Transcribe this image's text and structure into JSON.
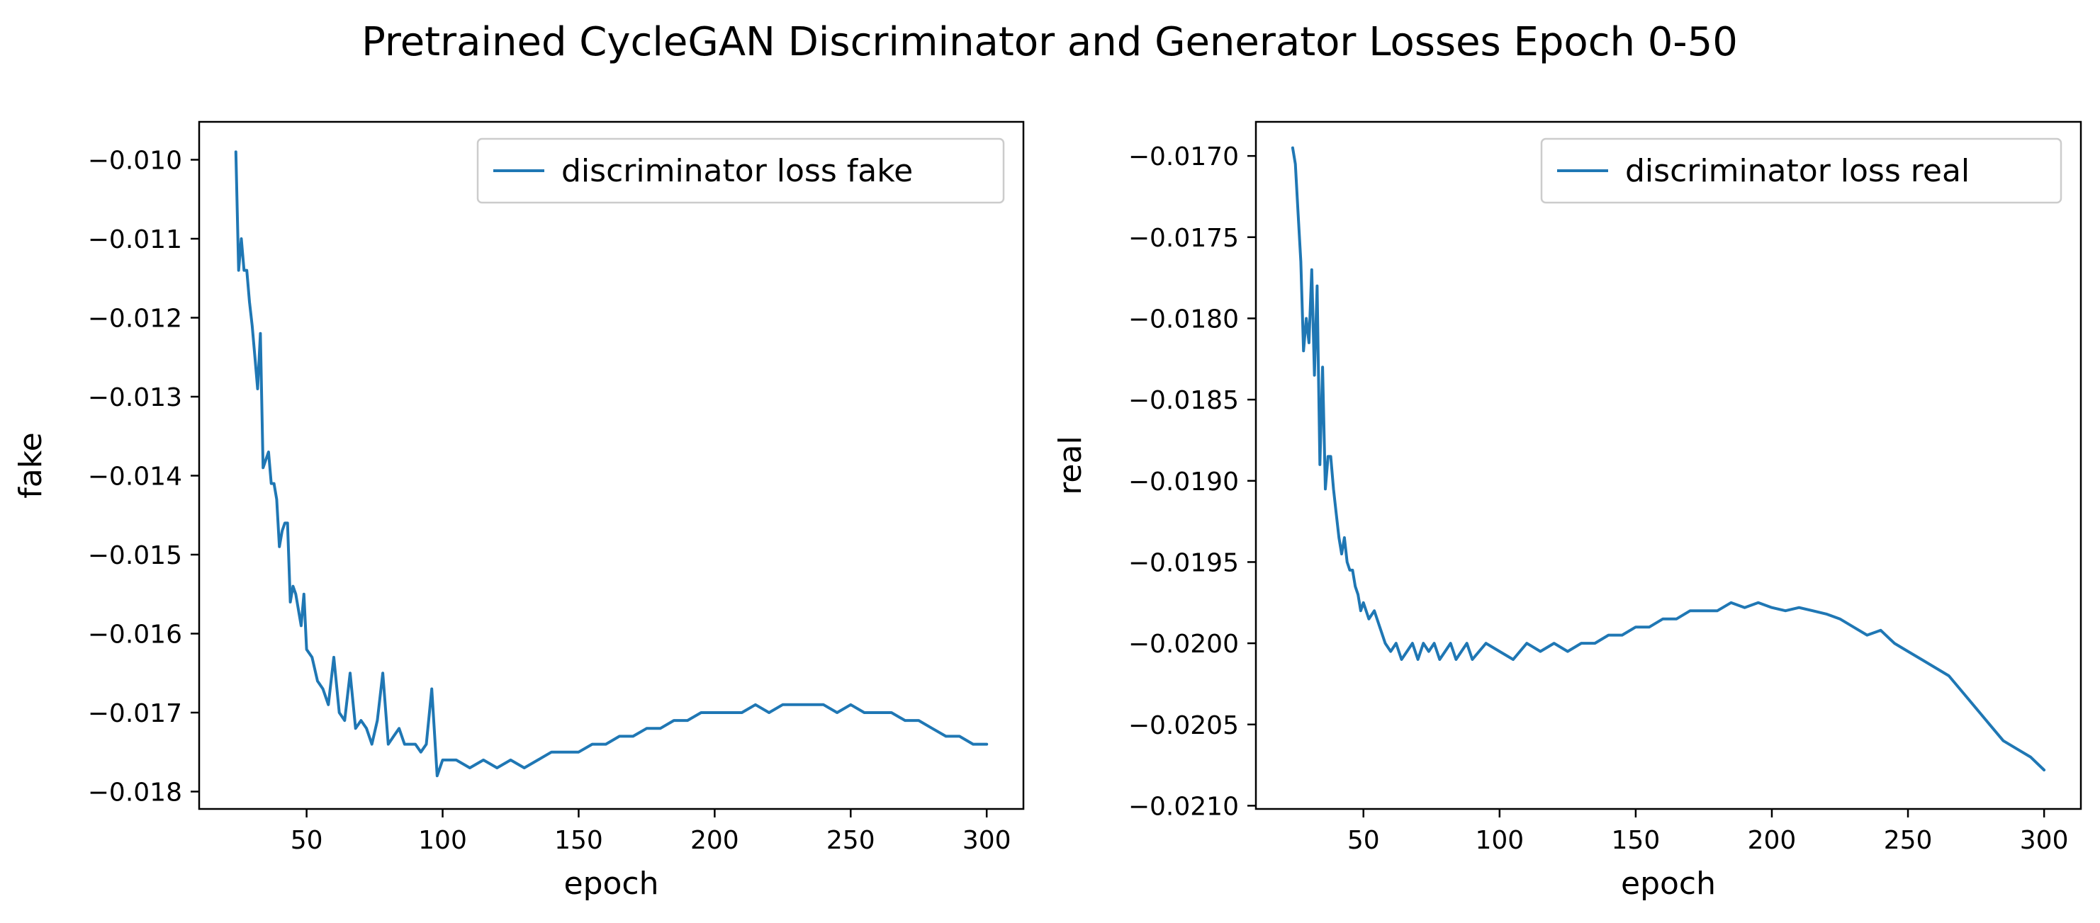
{
  "figure": {
    "title": "Pretrained CycleGAN Discriminator and Generator Losses Epoch 0-50"
  },
  "colors": {
    "series": "#1f77b4",
    "axes": "#000000",
    "legend_border": "#cccccc"
  },
  "chart_data": [
    {
      "type": "line",
      "title": "",
      "xlabel": "epoch",
      "ylabel": "fake",
      "xlim": [
        10.5,
        313.5
      ],
      "ylim": [
        -0.01822,
        -0.00952
      ],
      "xticks": [
        50,
        100,
        150,
        200,
        250,
        300
      ],
      "xtick_labels": [
        "50",
        "100",
        "150",
        "200",
        "250",
        "300"
      ],
      "yticks": [
        -0.01,
        -0.011,
        -0.012,
        -0.013,
        -0.014,
        -0.015,
        -0.016,
        -0.017,
        -0.018
      ],
      "ytick_labels": [
        "−0.010",
        "−0.011",
        "−0.012",
        "−0.013",
        "−0.014",
        "−0.015",
        "−0.016",
        "−0.017",
        "−0.018"
      ],
      "grid": false,
      "legend_position": "upper right",
      "series": [
        {
          "name": "discriminator loss fake",
          "color": "#1f77b4",
          "x": [
            24,
            25,
            26,
            27,
            28,
            29,
            30,
            31,
            32,
            33,
            34,
            35,
            36,
            37,
            38,
            39,
            40,
            41,
            42,
            43,
            44,
            45,
            46,
            47,
            48,
            49,
            50,
            52,
            54,
            56,
            58,
            60,
            62,
            64,
            66,
            68,
            70,
            72,
            74,
            76,
            78,
            80,
            82,
            84,
            86,
            88,
            90,
            92,
            94,
            96,
            98,
            100,
            105,
            110,
            115,
            120,
            125,
            130,
            135,
            140,
            145,
            150,
            155,
            160,
            165,
            170,
            175,
            180,
            185,
            190,
            195,
            200,
            205,
            210,
            215,
            220,
            225,
            230,
            235,
            240,
            245,
            250,
            255,
            260,
            265,
            270,
            275,
            280,
            285,
            290,
            295,
            300
          ],
          "y": [
            -0.0099,
            -0.0114,
            -0.011,
            -0.0114,
            -0.0114,
            -0.0118,
            -0.0121,
            -0.0125,
            -0.0129,
            -0.0122,
            -0.0139,
            -0.0138,
            -0.0137,
            -0.0141,
            -0.0141,
            -0.0143,
            -0.0149,
            -0.0147,
            -0.0146,
            -0.0146,
            -0.0156,
            -0.0154,
            -0.0155,
            -0.0157,
            -0.0159,
            -0.0155,
            -0.0162,
            -0.0163,
            -0.0166,
            -0.0167,
            -0.0169,
            -0.0163,
            -0.017,
            -0.0171,
            -0.0165,
            -0.0172,
            -0.0171,
            -0.0172,
            -0.0174,
            -0.0171,
            -0.0165,
            -0.0174,
            -0.0173,
            -0.0172,
            -0.0174,
            -0.0174,
            -0.0174,
            -0.0175,
            -0.0174,
            -0.0167,
            -0.0178,
            -0.0176,
            -0.0176,
            -0.0177,
            -0.0176,
            -0.0177,
            -0.0176,
            -0.0177,
            -0.0176,
            -0.0175,
            -0.0175,
            -0.0175,
            -0.0174,
            -0.0174,
            -0.0173,
            -0.0173,
            -0.0172,
            -0.0172,
            -0.0171,
            -0.0171,
            -0.017,
            -0.017,
            -0.017,
            -0.017,
            -0.0169,
            -0.017,
            -0.0169,
            -0.0169,
            -0.0169,
            -0.0169,
            -0.017,
            -0.0169,
            -0.017,
            -0.017,
            -0.017,
            -0.0171,
            -0.0171,
            -0.0172,
            -0.0173,
            -0.0173,
            -0.0174,
            -0.0174
          ]
        }
      ]
    },
    {
      "type": "line",
      "title": "",
      "xlabel": "epoch",
      "ylabel": "real",
      "xlim": [
        10.5,
        313.5
      ],
      "ylim": [
        -0.02102,
        -0.01679
      ],
      "xticks": [
        50,
        100,
        150,
        200,
        250,
        300
      ],
      "xtick_labels": [
        "50",
        "100",
        "150",
        "200",
        "250",
        "300"
      ],
      "yticks": [
        -0.017,
        -0.0175,
        -0.018,
        -0.0185,
        -0.019,
        -0.0195,
        -0.02,
        -0.0205,
        -0.021
      ],
      "ytick_labels": [
        "−0.0170",
        "−0.0175",
        "−0.0180",
        "−0.0185",
        "−0.0190",
        "−0.0195",
        "−0.0200",
        "−0.0205",
        "−0.0210"
      ],
      "grid": false,
      "legend_position": "upper right",
      "series": [
        {
          "name": "discriminator loss real",
          "color": "#1f77b4",
          "x": [
            24,
            25,
            26,
            27,
            28,
            29,
            30,
            31,
            32,
            33,
            34,
            35,
            36,
            37,
            38,
            39,
            40,
            41,
            42,
            43,
            44,
            45,
            46,
            47,
            48,
            49,
            50,
            52,
            54,
            56,
            58,
            60,
            62,
            64,
            66,
            68,
            70,
            72,
            74,
            76,
            78,
            80,
            82,
            84,
            86,
            88,
            90,
            95,
            100,
            105,
            110,
            115,
            120,
            125,
            130,
            135,
            140,
            145,
            150,
            155,
            160,
            165,
            170,
            175,
            180,
            185,
            190,
            195,
            200,
            205,
            210,
            215,
            220,
            225,
            230,
            235,
            240,
            245,
            250,
            255,
            260,
            265,
            270,
            275,
            280,
            285,
            290,
            295,
            300
          ],
          "y": [
            -0.01695,
            -0.01705,
            -0.01735,
            -0.01765,
            -0.0182,
            -0.018,
            -0.01815,
            -0.0177,
            -0.01835,
            -0.0178,
            -0.0189,
            -0.0183,
            -0.01905,
            -0.01885,
            -0.01885,
            -0.01905,
            -0.0192,
            -0.01935,
            -0.01945,
            -0.01935,
            -0.0195,
            -0.01955,
            -0.01955,
            -0.01965,
            -0.0197,
            -0.0198,
            -0.01975,
            -0.01985,
            -0.0198,
            -0.0199,
            -0.02,
            -0.02005,
            -0.02,
            -0.0201,
            -0.02005,
            -0.02,
            -0.0201,
            -0.02,
            -0.02005,
            -0.02,
            -0.0201,
            -0.02005,
            -0.02,
            -0.0201,
            -0.02005,
            -0.02,
            -0.0201,
            -0.02,
            -0.02005,
            -0.0201,
            -0.02,
            -0.02005,
            -0.02,
            -0.02005,
            -0.02,
            -0.02,
            -0.01995,
            -0.01995,
            -0.0199,
            -0.0199,
            -0.01985,
            -0.01985,
            -0.0198,
            -0.0198,
            -0.0198,
            -0.01975,
            -0.01978,
            -0.01975,
            -0.01978,
            -0.0198,
            -0.01978,
            -0.0198,
            -0.01982,
            -0.01985,
            -0.0199,
            -0.01995,
            -0.01992,
            -0.02,
            -0.02005,
            -0.0201,
            -0.02015,
            -0.0202,
            -0.0203,
            -0.0204,
            -0.0205,
            -0.0206,
            -0.02065,
            -0.0207,
            -0.02078
          ]
        }
      ]
    }
  ]
}
